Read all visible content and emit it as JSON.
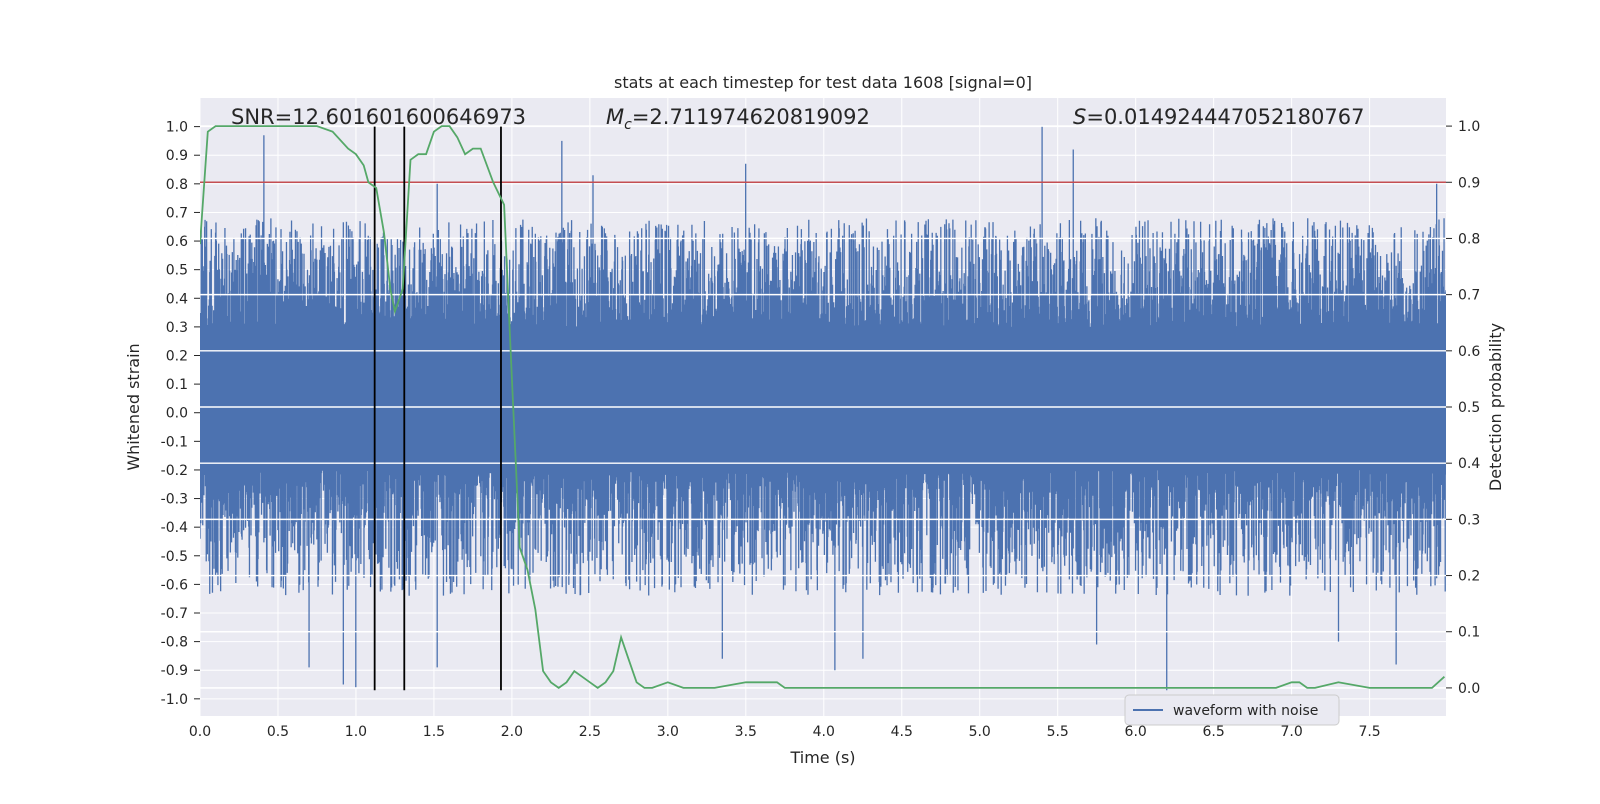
{
  "chart_data": {
    "type": "line",
    "title": "stats at each timestep for test data 1608 [signal=0]",
    "xlabel": "Time (s)",
    "ylabel": "Whitened strain",
    "ylabel_right": "Detection probability",
    "xlim": [
      0.0,
      7.99
    ],
    "ylim": [
      -1.06,
      1.1
    ],
    "ylim_right": [
      -0.05,
      1.05
    ],
    "xticks": [
      "0.0",
      "0.5",
      "1.0",
      "1.5",
      "2.0",
      "2.5",
      "3.0",
      "3.5",
      "4.0",
      "4.5",
      "5.0",
      "5.5",
      "6.0",
      "6.5",
      "7.0",
      "7.5"
    ],
    "yticks": [
      "1.0",
      "0.9",
      "0.8",
      "0.7",
      "0.6",
      "0.5",
      "0.4",
      "0.3",
      "0.2",
      "0.1",
      "0.0",
      "-0.1",
      "-0.2",
      "-0.3",
      "-0.4",
      "-0.5",
      "-0.6",
      "-0.7",
      "-0.8",
      "-0.9",
      "-1.0"
    ],
    "yticks_right": [
      "1.0",
      "0.9",
      "0.8",
      "0.7",
      "0.6",
      "0.5",
      "0.4",
      "0.3",
      "0.2",
      "0.1",
      "0.0"
    ],
    "grid": true,
    "legend_position": "bottom-right",
    "annotations": {
      "snr": "SNR=12.601601600646973",
      "mc_symbol": "M",
      "mc_sub": "c",
      "mc_value": "=2.711974620819092",
      "s_symbol": "S",
      "s_value": "=0.014924447052180767"
    },
    "series": [
      {
        "name": "waveform with noise",
        "axis": "left",
        "color": "#4c72b0",
        "kind": "noise-waveform",
        "amplitude_upper_peaks": [
          [
            0.41,
            0.97
          ],
          [
            1.52,
            0.8
          ],
          [
            2.32,
            0.95
          ],
          [
            2.52,
            0.83
          ],
          [
            3.5,
            0.87
          ],
          [
            5.4,
            1.0
          ],
          [
            5.6,
            0.92
          ],
          [
            7.93,
            0.8
          ]
        ],
        "amplitude_lower_peaks": [
          [
            0.7,
            -0.89
          ],
          [
            0.92,
            -0.95
          ],
          [
            1.0,
            -0.96
          ],
          [
            1.52,
            -0.89
          ],
          [
            3.35,
            -0.86
          ],
          [
            4.07,
            -0.9
          ],
          [
            4.25,
            -0.86
          ],
          [
            5.75,
            -0.81
          ],
          [
            6.2,
            -0.97
          ],
          [
            7.3,
            -0.8
          ],
          [
            7.67,
            -0.88
          ]
        ]
      },
      {
        "name": "",
        "axis": "right",
        "color": "#55a868",
        "x": [
          0.0,
          0.05,
          0.1,
          0.2,
          0.4,
          0.6,
          0.75,
          0.85,
          0.95,
          1.0,
          1.05,
          1.08,
          1.13,
          1.18,
          1.22,
          1.25,
          1.3,
          1.35,
          1.4,
          1.45,
          1.5,
          1.55,
          1.6,
          1.65,
          1.7,
          1.75,
          1.8,
          1.88,
          1.95,
          2.0,
          2.05,
          2.1,
          2.15,
          2.2,
          2.25,
          2.3,
          2.35,
          2.4,
          2.45,
          2.5,
          2.55,
          2.6,
          2.65,
          2.7,
          2.75,
          2.8,
          2.85,
          2.9,
          3.0,
          3.1,
          3.3,
          3.5,
          3.6,
          3.7,
          3.75,
          3.9,
          4.2,
          4.5,
          4.8,
          5.0,
          5.2,
          5.5,
          5.8,
          6.0,
          6.3,
          6.6,
          6.9,
          7.0,
          7.05,
          7.1,
          7.15,
          7.3,
          7.5,
          7.8,
          7.9,
          7.98
        ],
        "y": [
          0.79,
          0.99,
          1.0,
          1.0,
          1.0,
          1.0,
          1.0,
          0.99,
          0.96,
          0.95,
          0.93,
          0.9,
          0.89,
          0.81,
          0.71,
          0.67,
          0.71,
          0.94,
          0.95,
          0.95,
          0.99,
          1.0,
          1.0,
          0.98,
          0.95,
          0.96,
          0.96,
          0.9,
          0.86,
          0.55,
          0.25,
          0.21,
          0.14,
          0.03,
          0.01,
          0.0,
          0.01,
          0.03,
          0.02,
          0.01,
          0.0,
          0.01,
          0.03,
          0.09,
          0.05,
          0.01,
          0.0,
          0.0,
          0.01,
          0.0,
          0.0,
          0.01,
          0.01,
          0.01,
          0.0,
          0.0,
          0.0,
          0.0,
          0.0,
          0.0,
          0.0,
          0.0,
          0.0,
          0.0,
          0.0,
          0.0,
          0.0,
          0.01,
          0.01,
          0.0,
          0.0,
          0.01,
          0.0,
          0.0,
          0.0,
          0.02
        ]
      }
    ],
    "threshold_line": {
      "y_right": 0.9,
      "color": "#c44e52"
    },
    "vertical_lines_x": [
      1.12,
      1.31,
      1.93
    ]
  }
}
